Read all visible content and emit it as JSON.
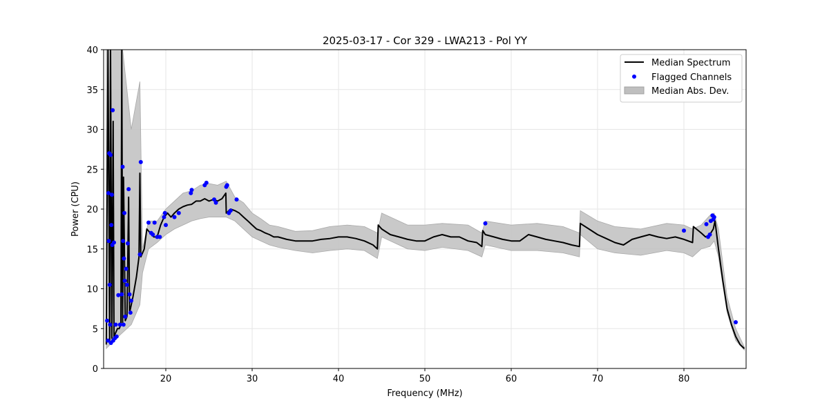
{
  "chart_data": {
    "type": "line",
    "title": "2025-03-17 - Cor 329 - LWA213 - Pol YY",
    "xlabel": "Frequency (MHz)",
    "ylabel": "Power (CPU)",
    "xlim": [
      12.8,
      87.2
    ],
    "ylim": [
      0,
      40
    ],
    "xticks": [
      20,
      30,
      40,
      50,
      60,
      70,
      80
    ],
    "yticks": [
      0,
      5,
      10,
      15,
      20,
      25,
      30,
      35,
      40
    ],
    "grid": true,
    "legend_position": "top-right",
    "legend": [
      "Median Spectrum",
      "Flagged Channels",
      "Median Abs. Dev."
    ],
    "colors": {
      "median": "#000000",
      "flagged": "#0000ff",
      "mad_fill": "#bfbfbf",
      "grid": "#e6e6e6"
    },
    "series": [
      {
        "name": "Median Spectrum",
        "x": [
          13.1,
          13.3,
          13.5,
          13.6,
          13.75,
          13.9,
          14.0,
          14.2,
          14.4,
          14.6,
          14.8,
          14.9,
          15.0,
          15.1,
          15.3,
          15.5,
          15.7,
          15.8,
          15.9,
          16.2,
          16.6,
          16.9,
          17.0,
          17.1,
          17.5,
          17.8,
          18.2,
          18.6,
          19.0,
          19.4,
          19.8,
          20.2,
          20.6,
          21.0,
          21.5,
          22.0,
          22.5,
          23.0,
          23.5,
          24.0,
          24.5,
          25.0,
          25.5,
          26.0,
          26.5,
          26.95,
          27.0,
          27.5,
          28.0,
          28.5,
          29.0,
          29.5,
          30.0,
          30.5,
          31.0,
          31.5,
          32.0,
          32.5,
          33.0,
          34.0,
          35.0,
          36.0,
          37.0,
          38.0,
          39.0,
          40.0,
          41.0,
          42.0,
          43.0,
          44.0,
          44.5,
          44.6,
          45.0,
          46.0,
          47.0,
          48.0,
          49.0,
          50.0,
          51.0,
          52.0,
          53.0,
          54.0,
          55.0,
          56.0,
          56.6,
          56.7,
          57.0,
          58.0,
          59.0,
          60.0,
          61.0,
          62.0,
          63.0,
          64.0,
          65.0,
          66.0,
          67.0,
          67.9,
          68.0,
          69.0,
          70.0,
          71.0,
          72.0,
          73.0,
          74.0,
          75.0,
          76.0,
          77.0,
          78.0,
          79.0,
          80.0,
          81.0,
          81.1,
          82.0,
          82.5,
          83.0,
          83.4,
          83.6,
          84.0,
          84.5,
          85.0,
          85.5,
          86.0,
          86.5,
          87.0
        ],
        "y": [
          3.0,
          40.0,
          3.5,
          40.0,
          3.8,
          31.0,
          4.0,
          4.5,
          5.0,
          5.0,
          5.5,
          40.0,
          5.5,
          24.0,
          6.0,
          6.5,
          21.5,
          7.0,
          7.5,
          9.0,
          11.5,
          14.0,
          24.5,
          14.0,
          15.0,
          17.5,
          17.0,
          16.5,
          16.5,
          18.0,
          19.0,
          19.5,
          19.0,
          19.5,
          20.0,
          20.3,
          20.5,
          20.6,
          21.0,
          21.0,
          21.3,
          21.0,
          21.2,
          21.0,
          21.3,
          22.0,
          19.5,
          20.0,
          19.8,
          19.5,
          19.0,
          18.5,
          18.0,
          17.5,
          17.3,
          17.0,
          16.8,
          16.5,
          16.5,
          16.2,
          16.0,
          16.0,
          16.0,
          16.2,
          16.3,
          16.5,
          16.5,
          16.3,
          16.0,
          15.5,
          15.0,
          18.0,
          17.5,
          16.8,
          16.5,
          16.2,
          16.0,
          16.0,
          16.5,
          16.8,
          16.5,
          16.5,
          16.0,
          15.8,
          15.3,
          17.3,
          16.8,
          16.5,
          16.2,
          16.0,
          16.0,
          16.8,
          16.5,
          16.2,
          16.0,
          15.8,
          15.5,
          15.3,
          18.2,
          17.5,
          16.8,
          16.3,
          15.8,
          15.5,
          16.2,
          16.5,
          16.8,
          16.5,
          16.3,
          16.5,
          16.2,
          15.8,
          17.8,
          17.0,
          16.5,
          16.8,
          17.5,
          18.5,
          15.0,
          11.0,
          7.5,
          5.5,
          4.0,
          3.0,
          2.5
        ]
      }
    ],
    "mad_band": {
      "name": "Median Abs. Dev.",
      "x": [
        13.1,
        14.0,
        15.0,
        16.0,
        17.0,
        17.3,
        18.0,
        19.0,
        20.0,
        21.0,
        22.0,
        23.0,
        24.0,
        25.0,
        26.0,
        27.0,
        28.0,
        29.0,
        30.0,
        31.0,
        32.0,
        33.0,
        35.0,
        37.0,
        39.0,
        41.0,
        43.0,
        44.5,
        45.0,
        48.0,
        50.0,
        52.0,
        55.0,
        56.6,
        57.0,
        60.0,
        63.0,
        66.0,
        67.9,
        68.0,
        70.0,
        72.0,
        75.0,
        78.0,
        80.0,
        81.0,
        82.0,
        83.0,
        83.5,
        84.0,
        85.0,
        86.0,
        87.0
      ],
      "lower": [
        2.5,
        3.5,
        4.5,
        5.5,
        8.0,
        12.0,
        15.0,
        15.8,
        16.8,
        17.5,
        18.0,
        18.5,
        18.8,
        19.0,
        19.0,
        19.0,
        18.5,
        17.5,
        16.5,
        16.0,
        15.5,
        15.2,
        14.8,
        14.5,
        14.8,
        15.0,
        14.8,
        13.8,
        16.5,
        15.0,
        14.8,
        15.2,
        14.8,
        14.0,
        15.5,
        14.8,
        14.8,
        14.5,
        14.0,
        16.8,
        15.0,
        14.5,
        14.2,
        14.8,
        14.5,
        14.0,
        15.0,
        15.3,
        16.0,
        14.0,
        7.0,
        3.5,
        2.3
      ],
      "upper": [
        40.0,
        40.0,
        40.0,
        30.0,
        36.0,
        15.0,
        18.5,
        18.5,
        20.0,
        21.0,
        22.0,
        22.3,
        23.0,
        23.2,
        23.0,
        23.5,
        21.5,
        20.8,
        19.5,
        18.8,
        18.0,
        17.8,
        17.2,
        17.3,
        17.8,
        18.0,
        17.8,
        17.0,
        19.5,
        18.0,
        18.0,
        18.2,
        18.0,
        17.0,
        18.5,
        18.0,
        18.2,
        17.8,
        17.0,
        19.8,
        18.5,
        17.8,
        17.5,
        18.2,
        18.0,
        17.5,
        18.0,
        19.2,
        19.5,
        17.5,
        9.0,
        5.0,
        2.7
      ]
    },
    "flagged_channels": {
      "name": "Flagged Channels",
      "x": [
        13.2,
        13.3,
        13.35,
        13.4,
        13.45,
        13.5,
        13.55,
        13.6,
        13.65,
        13.7,
        13.75,
        13.8,
        13.85,
        13.9,
        14.0,
        14.1,
        14.2,
        14.3,
        14.5,
        14.7,
        14.9,
        15.0,
        15.05,
        15.1,
        15.15,
        15.2,
        15.25,
        15.3,
        15.4,
        15.5,
        15.6,
        15.7,
        15.8,
        15.9,
        16.0,
        17.0,
        17.1,
        18.0,
        18.3,
        18.5,
        18.7,
        19.0,
        19.3,
        19.8,
        19.9,
        20.0,
        21.0,
        21.5,
        22.9,
        23.0,
        24.5,
        24.7,
        25.6,
        25.8,
        27.0,
        27.1,
        27.3,
        27.5,
        28.2,
        57.0,
        80.0,
        82.6,
        82.8,
        83.0,
        83.1,
        83.3,
        83.4,
        83.5,
        86.0
      ],
      "y": [
        6.0,
        3.5,
        22.0,
        16.0,
        27.0,
        10.5,
        5.5,
        26.8,
        3.2,
        18.0,
        21.8,
        15.5,
        32.4,
        3.5,
        15.8,
        3.8,
        5.5,
        4.0,
        9.2,
        5.5,
        9.3,
        25.3,
        16.0,
        5.5,
        13.8,
        19.5,
        11.0,
        6.5,
        12.5,
        10.5,
        15.7,
        22.5,
        9.3,
        7.0,
        8.5,
        14.3,
        25.9,
        18.3,
        17.0,
        16.8,
        18.3,
        16.5,
        16.5,
        19.0,
        19.5,
        18.0,
        19.0,
        19.5,
        22.0,
        22.4,
        23.0,
        23.3,
        21.2,
        20.8,
        22.8,
        23.0,
        19.5,
        19.8,
        21.2,
        18.2,
        17.3,
        18.1,
        16.5,
        16.8,
        18.5,
        19.2,
        18.7,
        19.0,
        5.8
      ]
    }
  }
}
